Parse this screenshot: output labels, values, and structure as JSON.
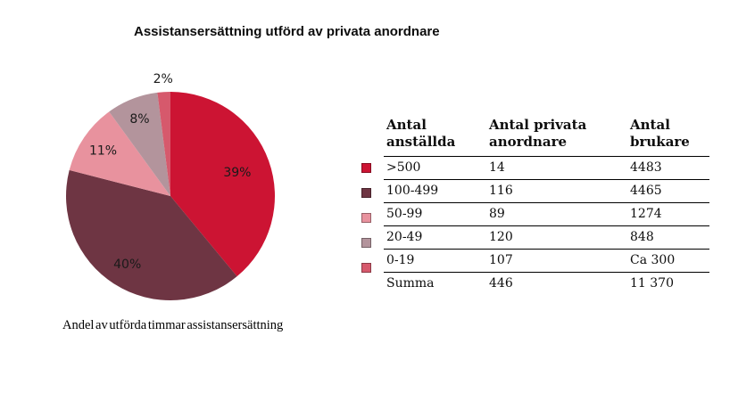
{
  "title": "Assistansersättning utförd av privata anordnare",
  "caption": "Andel av utförda timmar assistansersättning",
  "chart_data": {
    "type": "pie",
    "title": "Assistansersättning utförd av privata anordnare",
    "caption": "Andel av utförda timmar assistansersättning",
    "start_angle_deg": 0,
    "direction": "clockwise",
    "slices": [
      {
        "label": ">500",
        "pct": 39,
        "pct_label": "39%",
        "color": "#CC1433"
      },
      {
        "label": "100-499",
        "pct": 40,
        "pct_label": "40%",
        "color": "#6E3543"
      },
      {
        "label": "50-99",
        "pct": 11,
        "pct_label": "11%",
        "color": "#E8929E"
      },
      {
        "label": "20-49",
        "pct": 8,
        "pct_label": "8%",
        "color": "#B3949C"
      },
      {
        "label": "0-19",
        "pct": 2,
        "pct_label": "2%",
        "color": "#D6596C"
      }
    ],
    "legend_position": "left-of-table"
  },
  "table": {
    "headers": [
      "Antal anställda",
      "Antal privata anordnare",
      "Antal brukare"
    ],
    "rows": [
      {
        "swatch_color": "#CC1433",
        "cells": [
          ">500",
          "14",
          "4483"
        ]
      },
      {
        "swatch_color": "#6E3543",
        "cells": [
          "100-499",
          "116",
          "4465"
        ]
      },
      {
        "swatch_color": "#E8929E",
        "cells": [
          "50-99",
          "89",
          "1274"
        ]
      },
      {
        "swatch_color": "#B3949C",
        "cells": [
          "20-49",
          "120",
          "848"
        ]
      },
      {
        "swatch_color": "#D6596C",
        "cells": [
          "0-19",
          "107",
          "Ca 300"
        ]
      },
      {
        "swatch_color": null,
        "cells": [
          "Summa",
          "446",
          "11 370"
        ]
      }
    ]
  },
  "colors": {
    "background": "#ffffff",
    "text": "#1a1a1a",
    "table_line": "#000000"
  }
}
